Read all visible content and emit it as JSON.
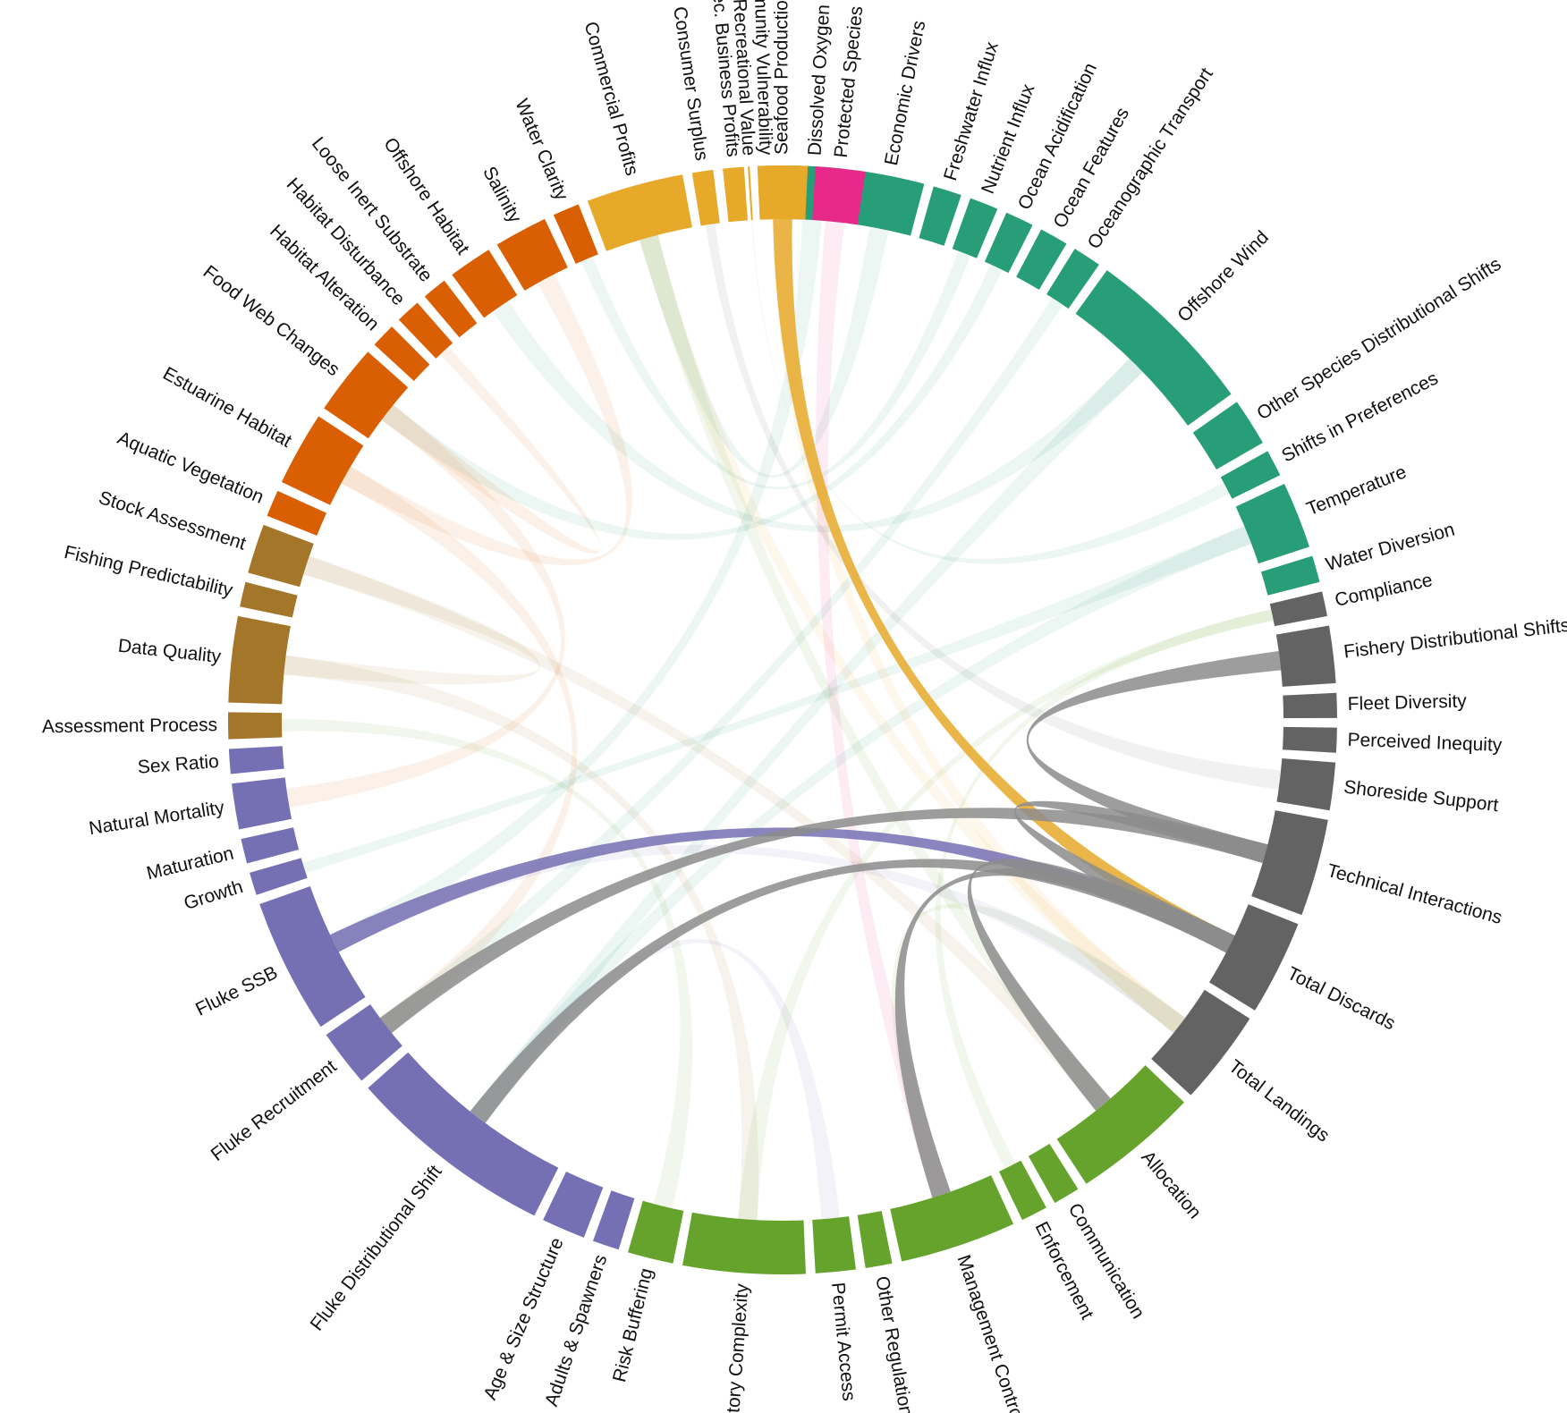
{
  "diagram": {
    "type": "chord",
    "colors": {
      "ecosystem": "#d95f02",
      "management_sector": "#e6a929",
      "protected": "#e7298a",
      "environment": "#279e77",
      "fishery": "#636363",
      "management": "#66a32c",
      "stock": "#7570b3",
      "science": "#a3762a",
      "link_highlight_discards": "#e6a929",
      "link_highlight_stock": "#7570b3",
      "link_highlight_fishery": "#8c8c8c"
    },
    "nodes": [
      {
        "id": "community_vulnerability",
        "label": "Community Vulnerability",
        "group": "management_sector",
        "a0": -2.6,
        "a1": -1.0
      },
      {
        "id": "dissolved_oxygen",
        "label": "Dissolved Oxygen",
        "group": "environment",
        "a0": 0.2,
        "a1": 6.5
      },
      {
        "id": "economic_drivers",
        "label": "Economic Drivers",
        "group": "environment",
        "a0": 7.5,
        "a1": 14.8
      },
      {
        "id": "freshwater_influx",
        "label": "Freshwater Influx",
        "group": "environment",
        "a0": 15.8,
        "a1": 18.8
      },
      {
        "id": "nutrient_influx",
        "label": "Nutrient Influx",
        "group": "environment",
        "a0": 19.8,
        "a1": 22.8
      },
      {
        "id": "ocean_acidification",
        "label": "Ocean Acidification",
        "group": "environment",
        "a0": 23.8,
        "a1": 26.8
      },
      {
        "id": "ocean_features",
        "label": "Ocean Features",
        "group": "environment",
        "a0": 27.8,
        "a1": 30.8
      },
      {
        "id": "oceanographic_transport",
        "label": "Oceanographic Transport",
        "group": "environment",
        "a0": 31.8,
        "a1": 34.8
      },
      {
        "id": "offshore_wind",
        "label": "Offshore Wind",
        "group": "environment",
        "a0": 35.8,
        "a1": 54.0
      },
      {
        "id": "other_species_distributional_shifts",
        "label": "Other Species Distributional Shifts",
        "group": "environment",
        "a0": 55.0,
        "a1": 60.0
      },
      {
        "id": "shifts_in_preferences",
        "label": "Shifts in Preferences",
        "group": "environment",
        "a0": 61.0,
        "a1": 63.8
      },
      {
        "id": "temperature",
        "label": "Temperature",
        "group": "environment",
        "a0": 64.8,
        "a1": 71.8
      },
      {
        "id": "water_diversion",
        "label": "Water Diversion",
        "group": "environment",
        "a0": 72.8,
        "a1": 75.6
      },
      {
        "id": "compliance",
        "label": "Compliance",
        "group": "fishery",
        "a0": 76.6,
        "a1": 79.2
      },
      {
        "id": "fishery_distributional_shifts",
        "label": "Fishery Distributional Shifts",
        "group": "fishery",
        "a0": 80.2,
        "a1": 86.2
      },
      {
        "id": "fleet_diversity",
        "label": "Fleet Diversity",
        "group": "fishery",
        "a0": 87.2,
        "a1": 89.8
      },
      {
        "id": "perceived_inequity",
        "label": "Perceived Inequity",
        "group": "fishery",
        "a0": 90.8,
        "a1": 93.4
      },
      {
        "id": "shoreside_support",
        "label": "Shoreside Support",
        "group": "fishery",
        "a0": 94.4,
        "a1": 99.4
      },
      {
        "id": "technical_interactions",
        "label": "Technical Interactions",
        "group": "fishery",
        "a0": 100.4,
        "a1": 110.6
      },
      {
        "id": "total_discards",
        "label": "Total Discards",
        "group": "fishery",
        "a0": 111.6,
        "a1": 121.6
      },
      {
        "id": "total_landings",
        "label": "Total Landings",
        "group": "fishery",
        "a0": 122.6,
        "a1": 132.6
      },
      {
        "id": "allocation",
        "label": "Allocation",
        "group": "management",
        "a0": 133.6,
        "a1": 146.8
      },
      {
        "id": "communication",
        "label": "Communication",
        "group": "management",
        "a0": 147.8,
        "a1": 150.6
      },
      {
        "id": "enforcement",
        "label": "Enforcement",
        "group": "management",
        "a0": 151.6,
        "a1": 154.4
      },
      {
        "id": "management_control",
        "label": "Management Control",
        "group": "management",
        "a0": 155.4,
        "a1": 167.6
      },
      {
        "id": "other_regulations",
        "label": "Other Regulations",
        "group": "management",
        "a0": 168.6,
        "a1": 171.4
      },
      {
        "id": "permit_access",
        "label": "Permit Access",
        "group": "management",
        "a0": 172.4,
        "a1": 176.6
      },
      {
        "id": "regulatory_complexity",
        "label": "Regulatory Complexity",
        "group": "management",
        "a0": 177.6,
        "a1": 190.4
      },
      {
        "id": "risk_buffering",
        "label": "Risk Buffering",
        "group": "management",
        "a0": 191.4,
        "a1": 196.2
      },
      {
        "id": "adults_spawners",
        "label": "Adults & Spawners",
        "group": "stock",
        "a0": 197.2,
        "a1": 200.0
      },
      {
        "id": "age_size_structure",
        "label": "Age & Size Structure",
        "group": "stock",
        "a0": 201.0,
        "a1": 205.6
      },
      {
        "id": "fluke_distributional_shift",
        "label": "Fluke Distributional Shift",
        "group": "stock",
        "a0": 206.6,
        "a1": 228.4
      },
      {
        "id": "fluke_recruitment",
        "label": "Fluke Recruitment",
        "group": "stock",
        "a0": 229.4,
        "a1": 235.4
      },
      {
        "id": "fluke_ssb",
        "label": "Fluke SSB",
        "group": "stock",
        "a0": 236.4,
        "a1": 250.6
      },
      {
        "id": "growth",
        "label": "Growth",
        "group": "stock",
        "a0": 251.6,
        "a1": 254.0
      },
      {
        "id": "maturation",
        "label": "Maturation",
        "group": "stock",
        "a0": 255.0,
        "a1": 257.6
      },
      {
        "id": "natural_mortality",
        "label": "Natural Mortality",
        "group": "stock",
        "a0": 258.6,
        "a1": 263.4
      },
      {
        "id": "sex_ratio",
        "label": "Sex Ratio",
        "group": "stock",
        "a0": 264.4,
        "a1": 267.0
      },
      {
        "id": "assessment_process",
        "label": "Assessment Process",
        "group": "science",
        "a0": 268.0,
        "a1": 270.8
      },
      {
        "id": "data_quality",
        "label": "Data Quality",
        "group": "science",
        "a0": 271.8,
        "a1": 280.8
      },
      {
        "id": "fishing_predictability",
        "label": "Fishing Predictability",
        "group": "science",
        "a0": 281.8,
        "a1": 284.4
      },
      {
        "id": "stock_assessment",
        "label": "Stock Assessment",
        "group": "science",
        "a0": 285.4,
        "a1": 290.6
      },
      {
        "id": "aquatic_vegetation",
        "label": "Aquatic Vegetation",
        "group": "ecosystem",
        "a0": 291.6,
        "a1": 294.4
      },
      {
        "id": "estuarine_habitat",
        "label": "Estuarine Habitat",
        "group": "ecosystem",
        "a0": 295.4,
        "a1": 303.2
      },
      {
        "id": "food_web_changes",
        "label": "Food Web Changes",
        "group": "ecosystem",
        "a0": 304.2,
        "a1": 311.6
      },
      {
        "id": "habitat_alteration",
        "label": "Habitat Alteration",
        "group": "ecosystem",
        "a0": 312.6,
        "a1": 315.2
      },
      {
        "id": "habitat_disturbance",
        "label": "Habitat Disturbance",
        "group": "ecosystem",
        "a0": 316.2,
        "a1": 318.8
      },
      {
        "id": "loose_inert_substrate",
        "label": "Loose Inert Substrate",
        "group": "ecosystem",
        "a0": 319.8,
        "a1": 322.4
      },
      {
        "id": "offshore_habitat",
        "label": "Offshore Habitat",
        "group": "ecosystem",
        "a0": 323.4,
        "a1": 328.0
      },
      {
        "id": "salinity",
        "label": "Salinity",
        "group": "ecosystem",
        "a0": 329.0,
        "a1": 334.6
      },
      {
        "id": "water_clarity",
        "label": "Water Clarity",
        "group": "ecosystem",
        "a0": 335.6,
        "a1": 338.4
      },
      {
        "id": "commercial_profits",
        "label": "Commercial Profits",
        "group": "management_sector",
        "a0": 339.4,
        "a1": 349.6
      },
      {
        "id": "consumer_surplus",
        "label": "Consumer Surplus",
        "group": "management_sector",
        "a0": 350.6,
        "a1": 352.8
      },
      {
        "id": "rec_business_profits",
        "label": "Rec. Business Profits",
        "group": "management_sector",
        "a0": 353.8,
        "a1": 356.0
      },
      {
        "id": "recreational_value",
        "label": "Recreational Value",
        "group": "management_sector",
        "a0": 356.4,
        "a1": 356.6
      },
      {
        "id": "seafood_production",
        "label": "Seafood Production",
        "group": "management_sector",
        "a0": 357.4,
        "a1": 362.6
      },
      {
        "id": "protected_species",
        "label": "Protected Species",
        "group": "protected",
        "a0": 363.4,
        "a1": 368.6
      }
    ],
    "links_highlight": [
      {
        "source": "total_discards",
        "target": "seafood_production",
        "kind": "link_highlight_discards"
      },
      {
        "source": "total_discards",
        "target": "fluke_ssb",
        "kind": "link_highlight_stock"
      },
      {
        "source": "fishery_distributional_shifts",
        "target": "technical_interactions",
        "kind": "link_highlight_fishery"
      },
      {
        "source": "technical_interactions",
        "target": "total_discards",
        "kind": "link_highlight_fishery"
      },
      {
        "source": "technical_interactions",
        "target": "fluke_recruitment",
        "kind": "link_highlight_fishery"
      },
      {
        "source": "total_discards",
        "target": "fluke_distributional_shift",
        "kind": "link_highlight_fishery"
      },
      {
        "source": "total_discards",
        "target": "management_control",
        "kind": "link_highlight_fishery"
      },
      {
        "source": "total_discards",
        "target": "allocation",
        "kind": "link_highlight_fishery"
      }
    ],
    "links_faint": [
      {
        "source": "dissolved_oxygen",
        "target": "fluke_ssb"
      },
      {
        "source": "economic_drivers",
        "target": "commercial_profits"
      },
      {
        "source": "offshore_wind",
        "target": "offshore_habitat"
      },
      {
        "source": "offshore_wind",
        "target": "fluke_distributional_shift"
      },
      {
        "source": "temperature",
        "target": "fluke_distributional_shift"
      },
      {
        "source": "temperature",
        "target": "growth"
      },
      {
        "source": "salinity",
        "target": "estuarine_habitat"
      },
      {
        "source": "food_web_changes",
        "target": "natural_mortality"
      },
      {
        "source": "estuarine_habitat",
        "target": "fluke_recruitment"
      },
      {
        "source": "data_quality",
        "target": "stock_assessment"
      },
      {
        "source": "data_quality",
        "target": "regulatory_complexity"
      },
      {
        "source": "stock_assessment",
        "target": "allocation"
      },
      {
        "source": "commercial_profits",
        "target": "total_landings"
      },
      {
        "source": "seafood_production",
        "target": "total_landings"
      },
      {
        "source": "regulatory_complexity",
        "target": "compliance"
      },
      {
        "source": "management_control",
        "target": "total_landings"
      },
      {
        "source": "allocation",
        "target": "commercial_profits"
      },
      {
        "source": "fluke_ssb",
        "target": "total_landings"
      },
      {
        "source": "ocean_acidification",
        "target": "food_web_changes"
      },
      {
        "source": "oceanographic_transport",
        "target": "fluke_recruitment"
      },
      {
        "source": "habitat_disturbance",
        "target": "food_web_changes"
      },
      {
        "source": "fluke_distributional_shift",
        "target": "permit_access"
      },
      {
        "source": "risk_buffering",
        "target": "assessment_process"
      },
      {
        "source": "protected_species",
        "target": "management_control"
      },
      {
        "source": "nutrient_influx",
        "target": "water_clarity"
      },
      {
        "source": "shifts_in_preferences",
        "target": "recreational_value"
      },
      {
        "source": "shoreside_support",
        "target": "consumer_surplus"
      },
      {
        "source": "enforcement",
        "target": "compliance"
      }
    ]
  }
}
